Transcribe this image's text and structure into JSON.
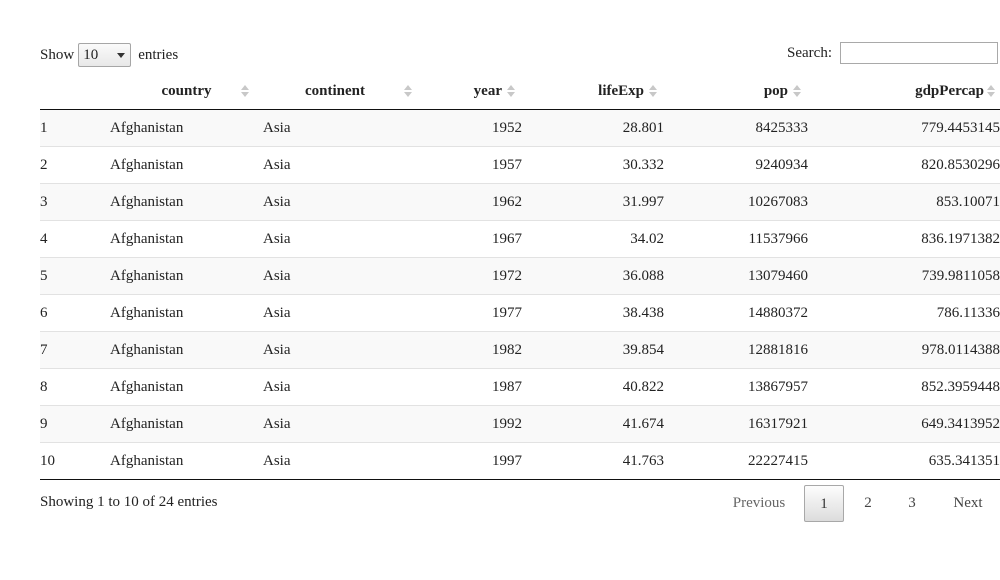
{
  "length": {
    "show_label": "Show",
    "selected": "10",
    "entries_label": "entries"
  },
  "search": {
    "label": "Search:",
    "value": ""
  },
  "table": {
    "headers": [
      "",
      "country",
      "continent",
      "year",
      "lifeExp",
      "pop",
      "gdpPercap"
    ],
    "rows": [
      [
        "1",
        "Afghanistan",
        "Asia",
        "1952",
        "28.801",
        "8425333",
        "779.4453145"
      ],
      [
        "2",
        "Afghanistan",
        "Asia",
        "1957",
        "30.332",
        "9240934",
        "820.8530296"
      ],
      [
        "3",
        "Afghanistan",
        "Asia",
        "1962",
        "31.997",
        "10267083",
        "853.10071"
      ],
      [
        "4",
        "Afghanistan",
        "Asia",
        "1967",
        "34.02",
        "11537966",
        "836.1971382"
      ],
      [
        "5",
        "Afghanistan",
        "Asia",
        "1972",
        "36.088",
        "13079460",
        "739.9811058"
      ],
      [
        "6",
        "Afghanistan",
        "Asia",
        "1977",
        "38.438",
        "14880372",
        "786.11336"
      ],
      [
        "7",
        "Afghanistan",
        "Asia",
        "1982",
        "39.854",
        "12881816",
        "978.0114388"
      ],
      [
        "8",
        "Afghanistan",
        "Asia",
        "1987",
        "40.822",
        "13867957",
        "852.3959448"
      ],
      [
        "9",
        "Afghanistan",
        "Asia",
        "1992",
        "41.674",
        "16317921",
        "649.3413952"
      ],
      [
        "10",
        "Afghanistan",
        "Asia",
        "1997",
        "41.763",
        "22227415",
        "635.341351"
      ]
    ]
  },
  "info": "Showing 1 to 10 of 24 entries",
  "pagination": {
    "previous": "Previous",
    "pages": [
      "1",
      "2",
      "3"
    ],
    "current": "1",
    "next": "Next"
  }
}
